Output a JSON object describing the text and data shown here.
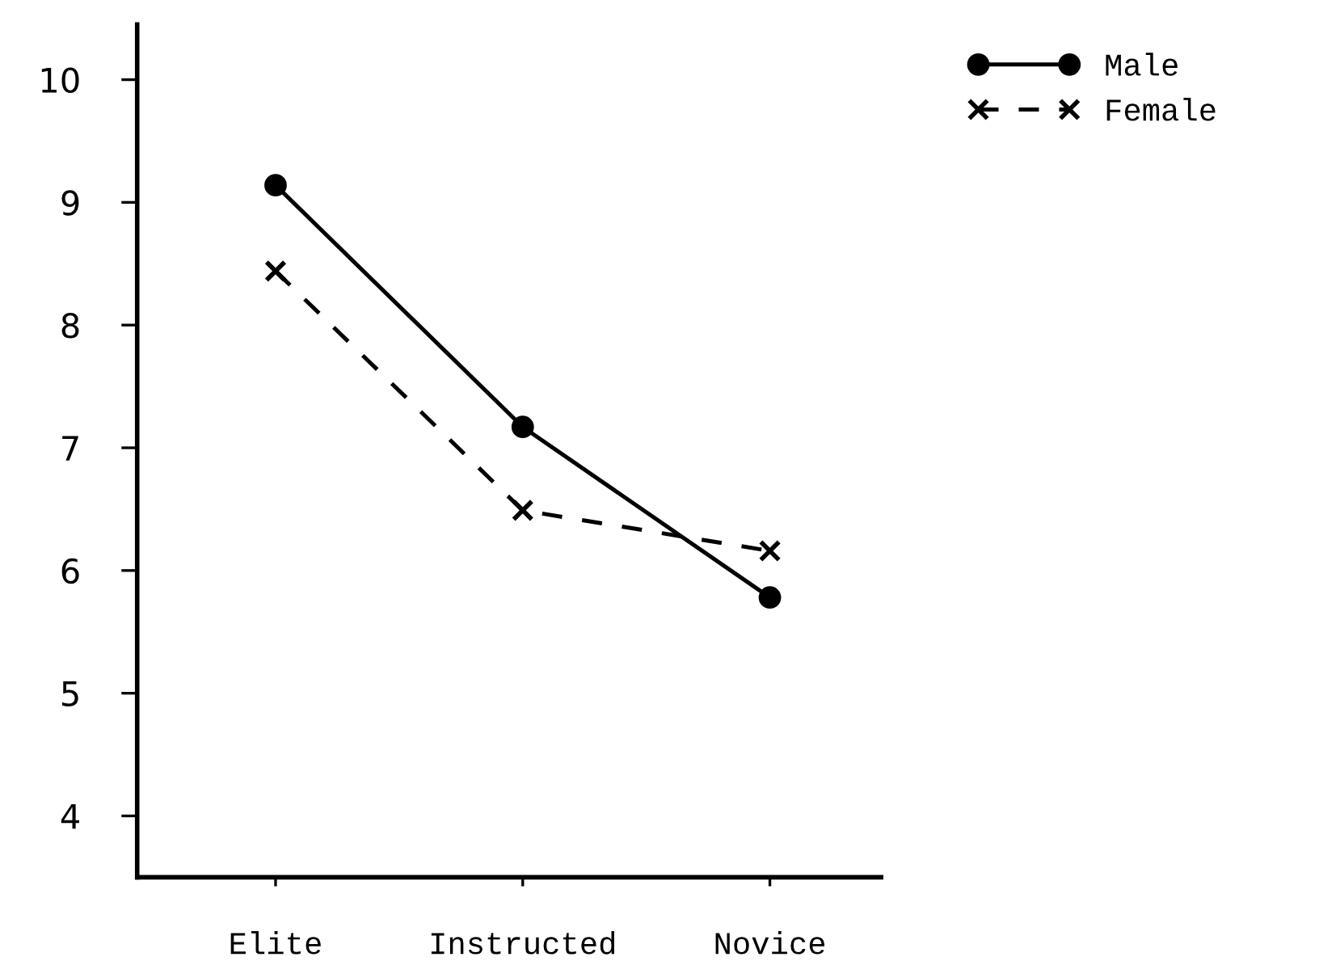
{
  "chart_data": {
    "type": "line",
    "categories": [
      "Elite",
      "Instructed",
      "Novice"
    ],
    "series": [
      {
        "name": "Male",
        "color": "#000000",
        "values": [
          9.14,
          7.17,
          5.78
        ],
        "marker": "circle",
        "line_style": "solid"
      },
      {
        "name": "Female",
        "color": "#000000",
        "values": [
          8.44,
          6.49,
          6.16
        ],
        "marker": "cross",
        "line_style": "dashed"
      }
    ],
    "ylim": [
      3.5,
      10.45
    ],
    "yticks": [
      4,
      5,
      6,
      7,
      8,
      9,
      10
    ],
    "grid": false,
    "legend": "top right"
  }
}
